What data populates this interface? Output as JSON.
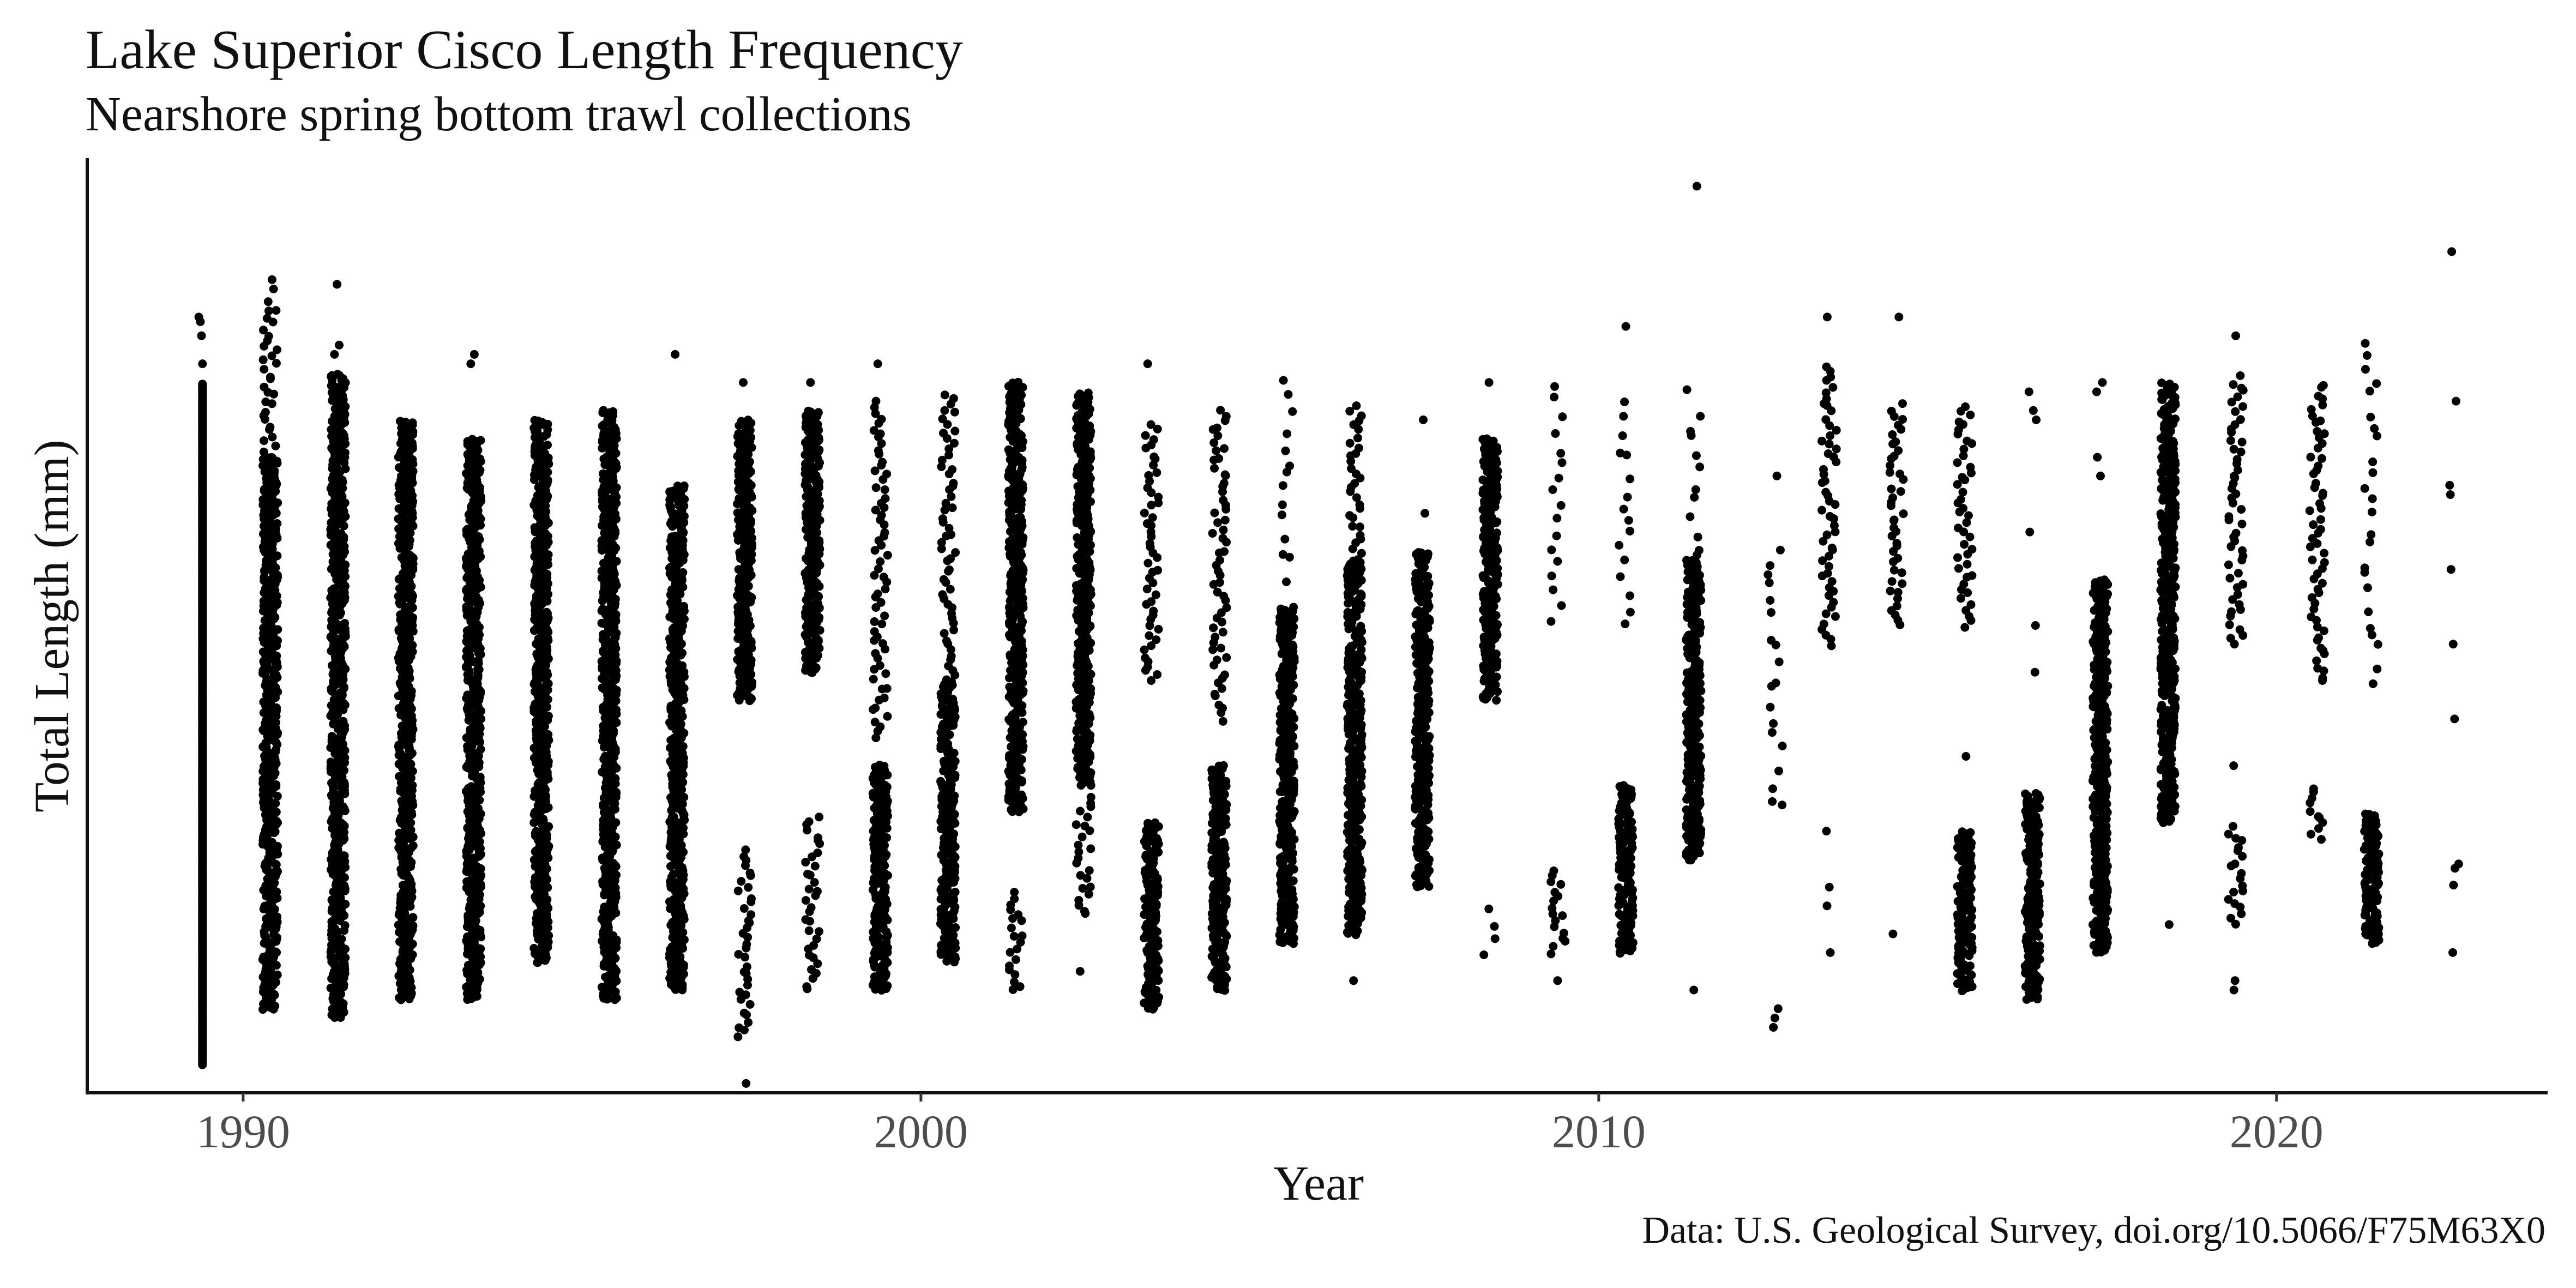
{
  "chart_data": {
    "type": "scatter",
    "title": "Lake Superior Cisco Length Frequency",
    "subtitle": "Nearshore spring bottom trawl collections",
    "caption": "Data: U.S. Geological Survey, doi.org/10.5066/F75M63X0",
    "xlabel": "Year",
    "ylabel": "Total Length (mm)",
    "xlim": [
      1987.7,
      2024
    ],
    "ylim": [
      0,
      100
    ],
    "x_ticks": [
      1990,
      2000,
      2010,
      2020
    ],
    "y_ticks_shown": false,
    "grid": false,
    "legend": "none",
    "point_color": "#000000",
    "note_values": "y is in relative units (0-100) since the y axis has no tick labels",
    "series": [
      {
        "x_ticks_note": "",
        "points": [
          {
            "x": 1989.4,
            "bands": [
              [
                3,
                76,
                "dense"
              ]
            ],
            "outliers": [
              78,
              81,
              82.5,
              83
            ]
          },
          {
            "x": 1990.4,
            "bands": [
              [
                9,
                68,
                "dense"
              ],
              [
                68,
                85,
                "medium"
              ]
            ],
            "outliers": [
              86,
              87
            ]
          },
          {
            "x": 1991.4,
            "bands": [
              [
                8,
                77,
                "dense"
              ]
            ],
            "outliers": [
              79,
              80,
              86.5
            ]
          },
          {
            "x": 1992.4,
            "bands": [
              [
                10,
                72,
                "dense"
              ]
            ],
            "outliers": []
          },
          {
            "x": 1993.4,
            "bands": [
              [
                10,
                70,
                "dense"
              ]
            ],
            "outliers": [
              78,
              79
            ]
          },
          {
            "x": 1994.4,
            "bands": [
              [
                14,
                72,
                "dense"
              ]
            ],
            "outliers": []
          },
          {
            "x": 1995.4,
            "bands": [
              [
                10,
                73,
                "dense"
              ]
            ],
            "outliers": []
          },
          {
            "x": 1996.4,
            "bands": [
              [
                11,
                65,
                "dense"
              ]
            ],
            "outliers": [
              79
            ]
          },
          {
            "x": 1997.4,
            "bands": [
              [
                6,
                26,
                "medium"
              ],
              [
                42,
                72,
                "dense"
              ]
            ],
            "outliers": [
              1,
              76
            ]
          },
          {
            "x": 1998.4,
            "bands": [
              [
                11,
                30,
                "medium"
              ],
              [
                45,
                73,
                "dense"
              ]
            ],
            "outliers": [
              76
            ]
          },
          {
            "x": 1999.4,
            "bands": [
              [
                11,
                35,
                "dense"
              ],
              [
                38,
                74,
                "medium"
              ]
            ],
            "outliers": [
              78
            ]
          },
          {
            "x": 2000.4,
            "bands": [
              [
                14,
                44,
                "dense"
              ],
              [
                44,
                75,
                "medium"
              ]
            ],
            "outliers": []
          },
          {
            "x": 2001.4,
            "bands": [
              [
                11,
                22,
                "medium"
              ],
              [
                30,
                76,
                "dense"
              ]
            ],
            "outliers": []
          },
          {
            "x": 2002.4,
            "bands": [
              [
                19,
                32,
                "medium"
              ],
              [
                33,
                75,
                "dense"
              ]
            ],
            "outliers": [
              13
            ]
          },
          {
            "x": 2003.4,
            "bands": [
              [
                9,
                29,
                "dense"
              ],
              [
                44,
                72,
                "medium"
              ]
            ],
            "outliers": [
              78
            ]
          },
          {
            "x": 2004.4,
            "bands": [
              [
                11,
                35,
                "dense"
              ],
              [
                40,
                73,
                "medium"
              ]
            ],
            "outliers": []
          },
          {
            "x": 2005.4,
            "bands": [
              [
                16,
                52,
                "dense"
              ],
              [
                55,
                76,
                "sparse"
              ]
            ],
            "outliers": []
          },
          {
            "x": 2006.4,
            "bands": [
              [
                17,
                57,
                "dense"
              ],
              [
                57,
                74,
                "medium"
              ]
            ],
            "outliers": [
              12
            ]
          },
          {
            "x": 2007.4,
            "bands": [
              [
                22,
                58,
                "dense"
              ]
            ],
            "outliers": [
              62,
              72
            ]
          },
          {
            "x": 2008.4,
            "bands": [
              [
                15,
                21,
                "sparse"
              ],
              [
                42,
                70,
                "dense"
              ]
            ],
            "outliers": [
              76
            ]
          },
          {
            "x": 2009.4,
            "bands": [
              [
                15,
                24,
                "medium"
              ],
              [
                50,
                76,
                "sparse"
              ]
            ],
            "outliers": [
              12
            ]
          },
          {
            "x": 2010.4,
            "bands": [
              [
                15,
                33,
                "dense"
              ],
              [
                50,
                75,
                "sparse"
              ]
            ],
            "outliers": [
              82
            ]
          },
          {
            "x": 2011.4,
            "bands": [
              [
                25,
                57,
                "dense"
              ],
              [
                57,
                75,
                "sparse"
              ]
            ],
            "outliers": [
              11,
              97
            ]
          },
          {
            "x": 2012.6,
            "bands": [
              [
                30,
                60,
                "sparse"
              ]
            ],
            "outliers": [
              7,
              8,
              9,
              66
            ]
          },
          {
            "x": 2013.4,
            "bands": [
              [
                48,
                78,
                "medium"
              ]
            ],
            "outliers": [
              15,
              20,
              22,
              28,
              83
            ]
          },
          {
            "x": 2014.4,
            "bands": [
              [
                50,
                74,
                "medium"
              ]
            ],
            "outliers": [
              17,
              83
            ]
          },
          {
            "x": 2015.4,
            "bands": [
              [
                11,
                28,
                "dense"
              ],
              [
                50,
                74,
                "medium"
              ]
            ],
            "outliers": [
              36
            ]
          },
          {
            "x": 2016.4,
            "bands": [
              [
                10,
                32,
                "dense"
              ]
            ],
            "outliers": [
              45,
              50,
              60,
              72,
              73,
              75
            ]
          },
          {
            "x": 2017.4,
            "bands": [
              [
                15,
                55,
                "dense"
              ]
            ],
            "outliers": [
              66,
              68,
              75,
              76
            ]
          },
          {
            "x": 2018.4,
            "bands": [
              [
                29,
                76,
                "dense"
              ]
            ],
            "outliers": [
              18
            ]
          },
          {
            "x": 2019.4,
            "bands": [
              [
                18,
                29,
                "medium"
              ],
              [
                48,
                77,
                "medium"
              ]
            ],
            "outliers": [
              11,
              12,
              35,
              81
            ]
          },
          {
            "x": 2020.6,
            "bands": [
              [
                27,
                33,
                "medium"
              ],
              [
                44,
                76,
                "medium"
              ]
            ],
            "outliers": []
          },
          {
            "x": 2021.4,
            "bands": [
              [
                16,
                30,
                "dense"
              ],
              [
                44,
                81,
                "sparse"
              ]
            ],
            "outliers": []
          },
          {
            "x": 2022.6,
            "bands": [
              [
                22,
                26,
                "sparse"
              ]
            ],
            "outliers": [
              15,
              40,
              48,
              56,
              64,
              65,
              74,
              90
            ]
          }
        ]
      }
    ]
  }
}
